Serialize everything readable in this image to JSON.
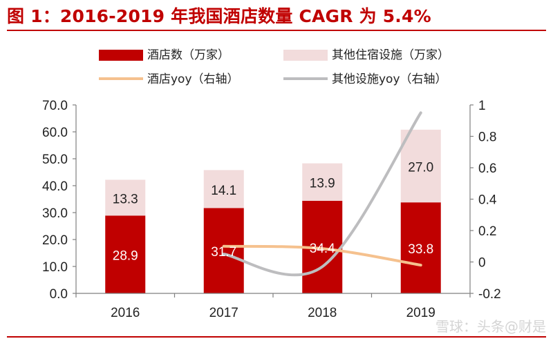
{
  "title": "图 1：2016-2019 年我国酒店数量 CAGR 为 5.4%",
  "watermark": "雪球：头条@财是",
  "colors": {
    "accent": "#c00000",
    "bar_main": "#c00000",
    "bar_other": "#f2dcdc",
    "line_hotel": "#f5c18e",
    "line_other": "#bdbdbf"
  },
  "chart_data": {
    "type": "bar",
    "stacked": true,
    "categories": [
      "2016",
      "2017",
      "2018",
      "2019"
    ],
    "series": [
      {
        "name": "酒店数（万家）",
        "type": "bar",
        "axis": "left",
        "values": [
          28.9,
          31.7,
          34.4,
          33.8
        ]
      },
      {
        "name": "其他住宿设施（万家）",
        "type": "bar",
        "axis": "left",
        "values": [
          13.3,
          14.1,
          13.9,
          27.0
        ]
      },
      {
        "name": "酒店yoy（右轴）",
        "type": "line",
        "axis": "right",
        "values": [
          null,
          0.1,
          0.085,
          -0.02
        ]
      },
      {
        "name": "其他设施yoy（右轴）",
        "type": "line",
        "axis": "right",
        "values": [
          null,
          0.05,
          -0.03,
          0.95
        ]
      }
    ],
    "ylim": [
      0,
      70
    ],
    "yticks": [
      "0.0",
      "10.0",
      "20.0",
      "30.0",
      "40.0",
      "50.0",
      "60.0",
      "70.0"
    ],
    "y2lim": [
      -0.2,
      1
    ],
    "y2ticks": [
      "-0.2",
      "0",
      "0.2",
      "0.4",
      "0.6",
      "0.8",
      "1"
    ],
    "legend": "top",
    "grid": false
  }
}
